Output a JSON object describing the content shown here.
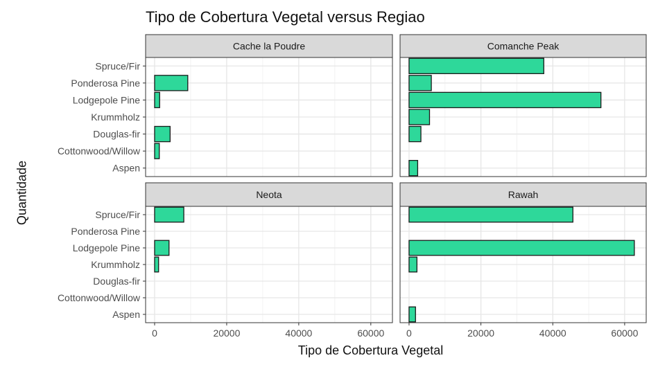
{
  "chart_data": {
    "type": "bar",
    "orientation": "horizontal",
    "title": "Tipo de Cobertura Vegetal versus Regiao",
    "xlabel": "Tipo de Cobertura Vegetal",
    "ylabel": "Quantidade",
    "xlim": [
      -2500,
      66000
    ],
    "x_ticks": [
      0,
      20000,
      40000,
      60000
    ],
    "x_tick_labels": [
      "0",
      "20000",
      "40000",
      "60000"
    ],
    "categories": [
      "Spruce/Fir",
      "Ponderosa Pine",
      "Lodgepole Pine",
      "Krummholz",
      "Douglas-fir",
      "Cottonwood/Willow",
      "Aspen"
    ],
    "grid": true,
    "bar_color": "#2ed89a",
    "facets": [
      {
        "name": "Cache la Poudre",
        "values": [
          0,
          9200,
          1400,
          0,
          4300,
          1300,
          0
        ]
      },
      {
        "name": "Comanche Peak",
        "values": [
          37500,
          6200,
          53400,
          5700,
          3300,
          0,
          2400
        ]
      },
      {
        "name": "Neota",
        "values": [
          8100,
          0,
          4000,
          1100,
          0,
          0,
          0
        ]
      },
      {
        "name": "Rawah",
        "values": [
          45600,
          0,
          62700,
          2200,
          0,
          0,
          1800
        ]
      }
    ]
  }
}
